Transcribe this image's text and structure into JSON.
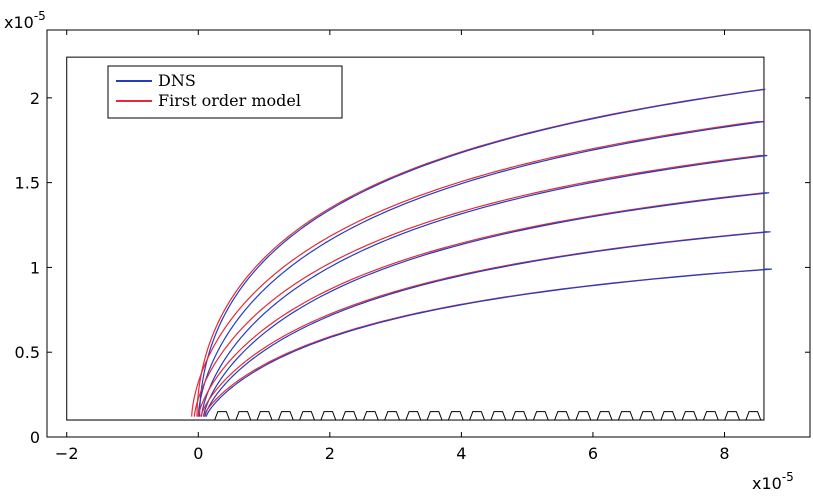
{
  "chart_data": {
    "type": "line",
    "x_multiplier_label": "x10",
    "x_multiplier_exp": "-5",
    "y_multiplier_label": "x10",
    "y_multiplier_exp": "-5",
    "xlim": [
      -2.3,
      9.3
    ],
    "ylim": [
      0,
      2.4
    ],
    "x_ticks": [
      -2,
      0,
      2,
      4,
      6,
      8
    ],
    "y_ticks": [
      0,
      0.5,
      1,
      1.5,
      2
    ],
    "x_tick_labels": [
      "−2",
      "0",
      "2",
      "4",
      "6",
      "8"
    ],
    "y_tick_labels": [
      "0",
      "0.5",
      "1",
      "1.5",
      "2"
    ],
    "grid": false,
    "legend": {
      "placement": "top-left",
      "entries": [
        {
          "label": "DNS",
          "color": "#1f3fbf"
        },
        {
          "label": "First order model",
          "color": "#e8283a"
        }
      ]
    },
    "domain_box": {
      "x": [
        -2,
        8.6
      ],
      "y": [
        0.1,
        2.24
      ]
    },
    "substrate": {
      "y_base": 0.1,
      "bump_start": 0.2,
      "bump_end": 8.6,
      "bump_count": 26,
      "bump_height": 0.05
    },
    "curves": [
      {
        "x0_dns": 0.02,
        "x0_model": -0.02,
        "y_end": 2.05,
        "k": 0.85
      },
      {
        "x0_dns": 0.0,
        "x0_model": -0.1,
        "y_end": 1.86,
        "k": 0.55
      },
      {
        "x0_dns": 0.05,
        "x0_model": -0.06,
        "y_end": 1.66,
        "k": 0.42
      },
      {
        "x0_dns": 0.08,
        "x0_model": 0.0,
        "y_end": 1.44,
        "k": 0.35
      },
      {
        "x0_dns": 0.1,
        "x0_model": 0.04,
        "y_end": 1.21,
        "k": 0.3
      },
      {
        "x0_dns": 0.12,
        "x0_model": 0.08,
        "y_end": 0.99,
        "k": 0.26
      }
    ],
    "series": [
      {
        "name": "DNS",
        "color": "#1f3fbf"
      },
      {
        "name": "First order model",
        "color": "#e8283a"
      }
    ]
  }
}
